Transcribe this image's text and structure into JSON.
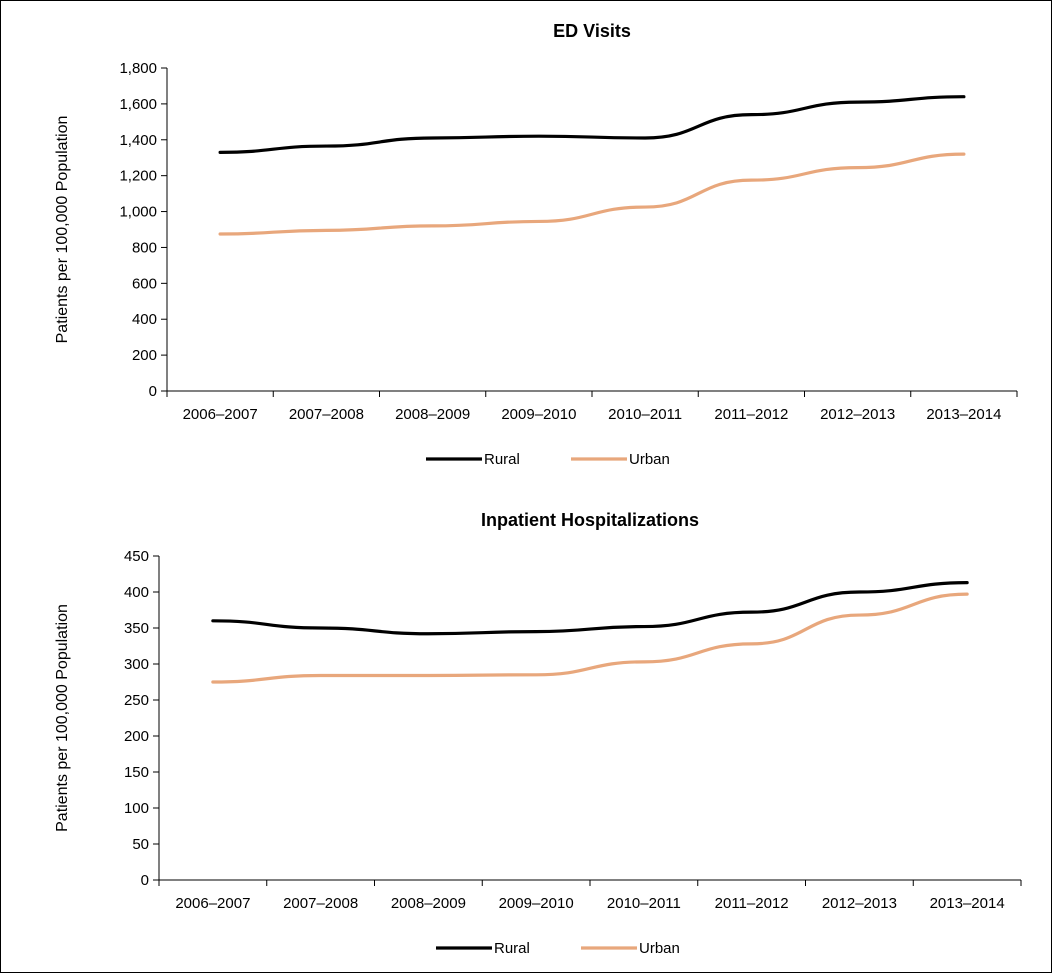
{
  "chart_data": [
    {
      "type": "line",
      "title": "ED Visits",
      "ylabel": "Patients per 100,000 Population",
      "xlabel": "",
      "categories": [
        "2006–2007",
        "2007–2008",
        "2008–2009",
        "2009–2010",
        "2010–2011",
        "2011–2012",
        "2012–2013",
        "2013–2014"
      ],
      "ylim": [
        0,
        1800
      ],
      "yticks": [
        0,
        200,
        400,
        600,
        800,
        1000,
        1200,
        1400,
        1600,
        1800
      ],
      "yticklabels": [
        "0",
        "200",
        "400",
        "600",
        "800",
        "1,000",
        "1,200",
        "1,400",
        "1,600",
        "1,800"
      ],
      "grid": false,
      "legend_position": "bottom",
      "series": [
        {
          "name": "Rural",
          "color": "#000000",
          "values": [
            1330,
            1365,
            1410,
            1420,
            1410,
            1540,
            1610,
            1640
          ]
        },
        {
          "name": "Urban",
          "color": "#E8A77C",
          "values": [
            875,
            895,
            920,
            945,
            1025,
            1175,
            1245,
            1320
          ]
        }
      ]
    },
    {
      "type": "line",
      "title": "Inpatient Hospitalizations",
      "ylabel": "Patients per 100,000 Population",
      "xlabel": "",
      "categories": [
        "2006–2007",
        "2007–2008",
        "2008–2009",
        "2009–2010",
        "2010–2011",
        "2011–2012",
        "2012–2013",
        "2013–2014"
      ],
      "ylim": [
        0,
        450
      ],
      "yticks": [
        0,
        50,
        100,
        150,
        200,
        250,
        300,
        350,
        400,
        450
      ],
      "yticklabels": [
        "0",
        "50",
        "100",
        "150",
        "200",
        "250",
        "300",
        "350",
        "400",
        "450"
      ],
      "grid": false,
      "legend_position": "bottom",
      "series": [
        {
          "name": "Rural",
          "color": "#000000",
          "values": [
            360,
            350,
            342,
            345,
            352,
            372,
            400,
            413
          ]
        },
        {
          "name": "Urban",
          "color": "#E8A77C",
          "values": [
            275,
            284,
            284,
            285,
            303,
            328,
            368,
            397
          ]
        }
      ]
    }
  ]
}
